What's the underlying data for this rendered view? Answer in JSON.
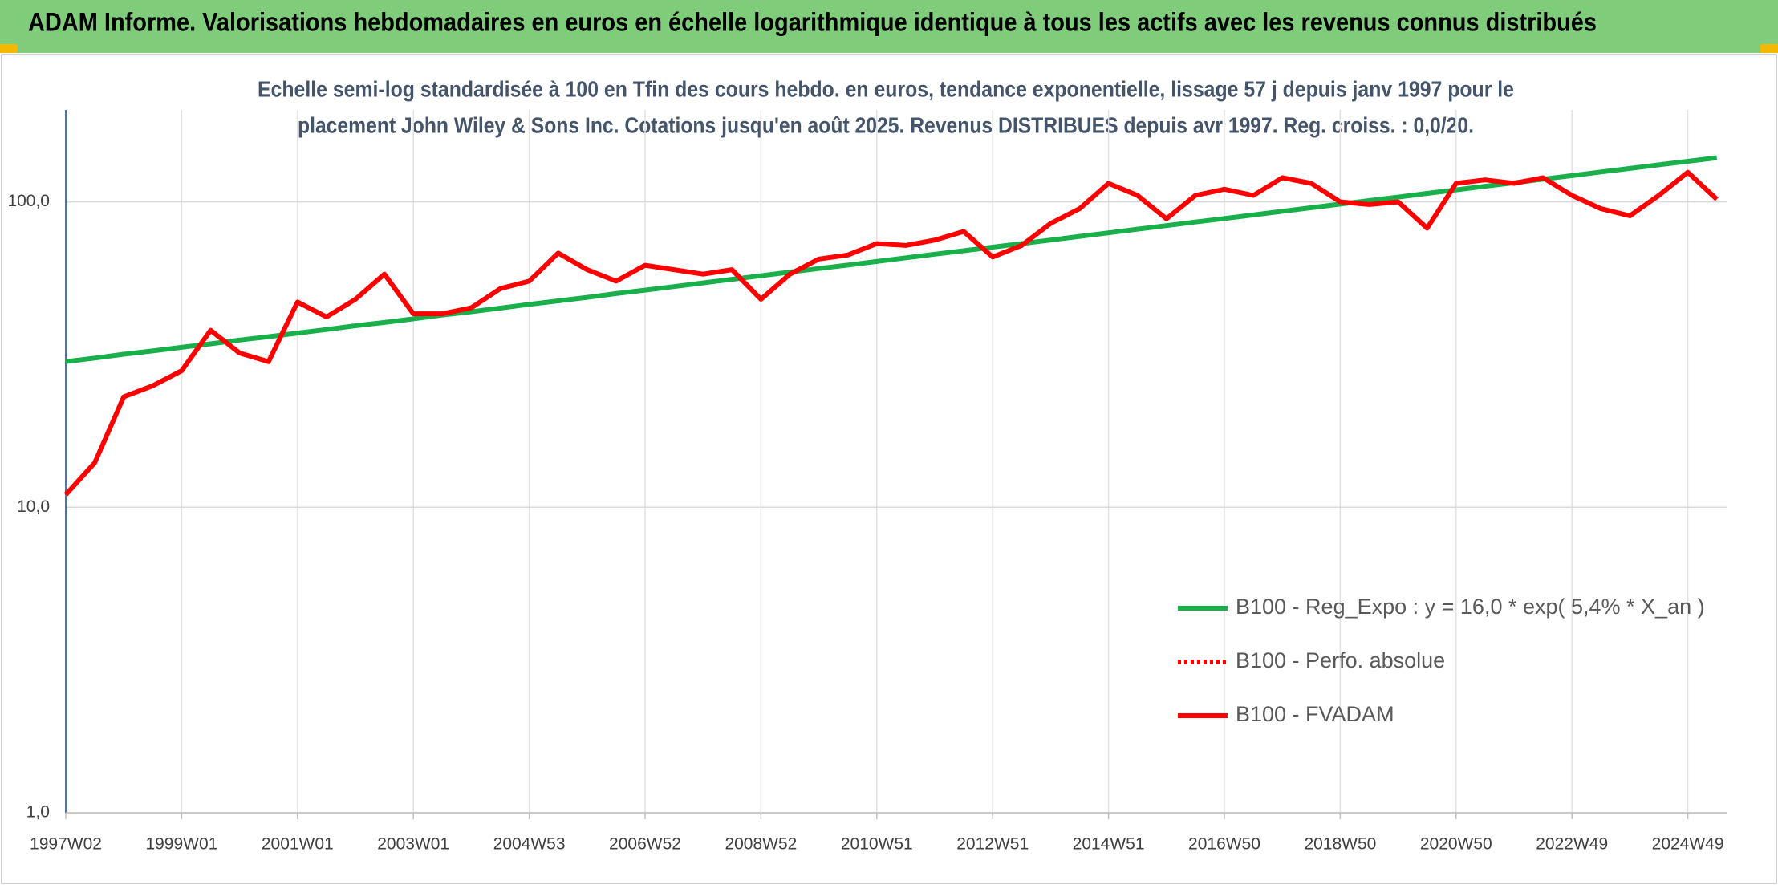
{
  "chart_data": {
    "type": "line",
    "title": "ADAM Informe. Valorisations hebdomadaires en euros en échelle logarithmique identique à tous les actifs avec les revenus connus distribués",
    "subtitle": [
      "Echelle semi-log standardisée à 100 en Tfin des cours hebdo. en euros, tendance exponentielle, lissage 57 j depuis janv 1997 pour le",
      "placement John Wiley & Sons Inc. Cotations jusqu'en août 2025. Revenus DISTRIBUES depuis avr 1997. Reg. croiss. : 0,0/20."
    ],
    "categories": [
      "1997W02",
      null,
      null,
      null,
      "1999W01",
      null,
      null,
      null,
      "2001W01",
      null,
      null,
      null,
      "2003W01",
      null,
      null,
      null,
      "2004W53",
      null,
      null,
      null,
      "2006W52",
      null,
      null,
      null,
      "2008W52",
      null,
      null,
      null,
      "2010W51",
      null,
      null,
      null,
      "2012W51",
      null,
      null,
      null,
      "2014W51",
      null,
      null,
      null,
      "2016W50",
      null,
      null,
      null,
      "2018W50",
      null,
      null,
      null,
      "2020W50",
      null,
      null,
      null,
      "2022W49",
      null,
      null,
      null,
      "2024W49",
      null
    ],
    "series": [
      {
        "name": "B100 - Reg_Expo : y = 16,0 * exp( 5,4% *  X_an )",
        "color": "#19b04b",
        "style": "solid",
        "values": [
          30.0,
          30.8,
          31.7,
          32.5,
          33.4,
          34.3,
          35.3,
          36.2,
          37.2,
          38.2,
          39.3,
          40.3,
          41.4,
          42.6,
          43.7,
          44.9,
          46.2,
          47.4,
          48.7,
          50.1,
          51.4,
          52.8,
          54.3,
          55.8,
          57.3,
          58.9,
          60.5,
          62.1,
          63.8,
          65.6,
          67.4,
          69.2,
          71.1,
          73.0,
          75.0,
          77.1,
          79.2,
          81.4,
          83.6,
          85.9,
          88.2,
          90.6,
          93.1,
          95.7,
          98.3,
          101.0,
          103.7,
          106.6,
          109.5,
          112.5,
          115.5,
          118.7,
          121.9,
          125.3,
          128.7,
          132.2,
          135.8,
          139.5
        ]
      },
      {
        "name": "B100 - Perfo. absolue",
        "color": "#ff0000",
        "style": "dotted",
        "values": [
          11,
          14,
          23,
          25,
          28,
          38,
          32,
          30,
          47,
          42,
          48,
          58,
          43,
          43,
          45,
          52,
          55,
          68,
          60,
          55,
          62,
          60,
          58,
          60,
          48,
          58,
          65,
          67,
          73,
          72,
          75,
          80,
          66,
          72,
          85,
          95,
          115,
          105,
          88,
          105,
          110,
          105,
          120,
          115,
          100,
          98,
          100,
          82,
          115,
          118,
          115,
          120,
          105,
          95,
          90,
          105,
          125,
          102
        ]
      },
      {
        "name": "B100 - FVADAM",
        "color": "#ff0000",
        "style": "solid",
        "values": [
          11,
          14,
          23,
          25,
          28,
          38,
          32,
          30,
          47,
          42,
          48,
          58,
          43,
          43,
          45,
          52,
          55,
          68,
          60,
          55,
          62,
          60,
          58,
          60,
          48,
          58,
          65,
          67,
          73,
          72,
          75,
          80,
          66,
          72,
          85,
          95,
          115,
          105,
          88,
          105,
          110,
          105,
          120,
          115,
          100,
          98,
          100,
          82,
          115,
          118,
          115,
          120,
          105,
          95,
          90,
          105,
          125,
          102
        ]
      }
    ],
    "ylim": [
      1,
      200
    ],
    "yticks": [
      {
        "value": 1,
        "label": "1,0"
      },
      {
        "value": 10,
        "label": "10,0"
      },
      {
        "value": 100,
        "label": "100,0"
      }
    ],
    "log_y": true,
    "grid": true,
    "legend": "bottom-right"
  }
}
